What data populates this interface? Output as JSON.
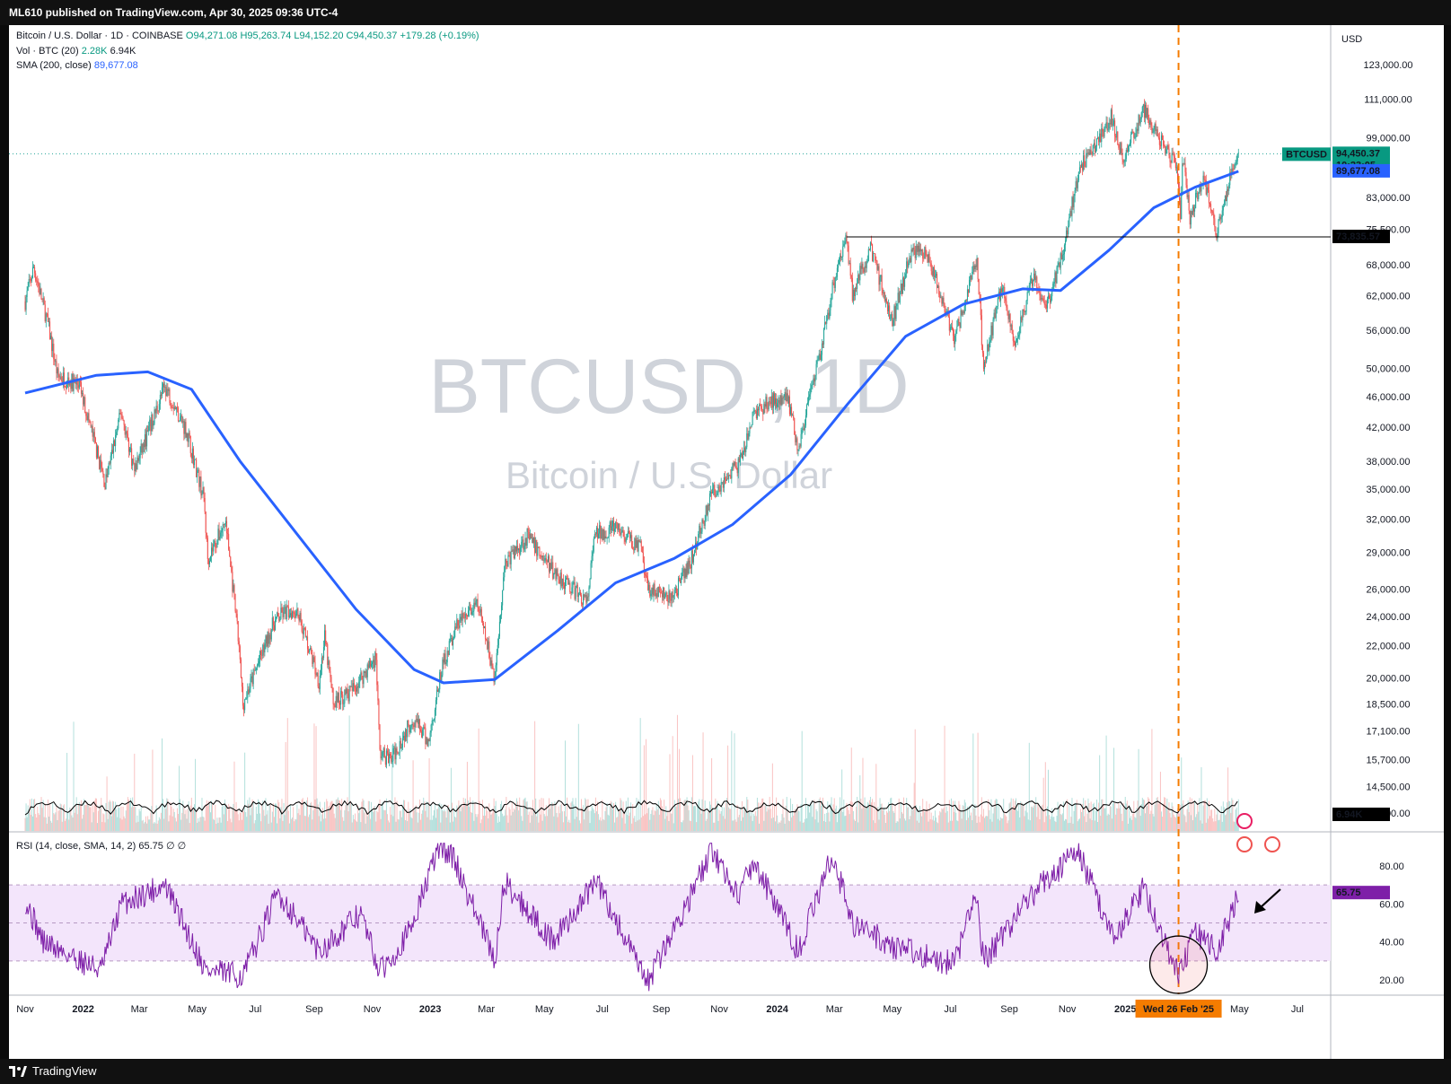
{
  "published_line": "ML610 published on TradingView.com, Apr 30, 2025 09:36 UTC-4",
  "footer_brand": "TradingView",
  "legend": {
    "symbol_line": "Bitcoin / U.S. Dollar · 1D · COINBASE",
    "o": "O94,271.08",
    "h": "H95,263.74",
    "l": "L94,152.20",
    "c": "C94,450.37",
    "chg": "+179.28 (+0.19%)",
    "vol_title": "Vol · BTC (20)",
    "vol_val1": "2.28K",
    "vol_val2": "6.94K",
    "sma_title": "SMA (200, close)",
    "sma_val": "89,677.08",
    "rsi_title": "RSI (14, close, SMA, 14, 2)",
    "rsi_val": "65.75",
    "rsi_extra": "∅ ∅"
  },
  "watermark": {
    "line1": "BTCUSD , 1D",
    "line2": "Bitcoin / U.S. Dollar"
  },
  "axis_currency": "USD",
  "badges": {
    "price": "94,450.37",
    "countdown": "10:23:05",
    "symbol": "BTCUSD",
    "sma": "89,677.08",
    "level": "73,835.57",
    "volume": "6.94K",
    "rsi": "65.75",
    "crosshair_date": "Wed 26 Feb '25"
  },
  "colors": {
    "up": "#26a69a",
    "down": "#ef5350",
    "sma": "#2962ff",
    "rsi": "#7e1fa8",
    "rsi_band": "#f3e5fb",
    "crosshair": "#f57c00",
    "badge_green": "#089981"
  },
  "chart_data": [
    {
      "type": "candlestick",
      "title": "Bitcoin / U.S. Dollar · 1D · COINBASE",
      "price_axis_scale": "log",
      "y_ticks": [
        123000,
        111000,
        99000,
        83000,
        75500,
        68000,
        62000,
        56000,
        50000,
        46000,
        42000,
        38000,
        35000,
        32000,
        29000,
        26000,
        24000,
        22000,
        20000,
        18500,
        17100,
        15700,
        14500,
        13400
      ],
      "x_ticks": [
        "Nov",
        "2022",
        "Mar",
        "May",
        "Jul",
        "Sep",
        "Nov",
        "2023",
        "Mar",
        "May",
        "Jul",
        "Sep",
        "Nov",
        "2024",
        "Mar",
        "May",
        "Jul",
        "Sep",
        "Nov",
        "2025",
        "Mar",
        "May",
        "Jul"
      ],
      "price_path": [
        [
          "2021-11-01",
          61000
        ],
        [
          "2021-11-10",
          67500
        ],
        [
          "2021-11-25",
          57000
        ],
        [
          "2021-12-05",
          49000
        ],
        [
          "2021-12-28",
          47500
        ],
        [
          "2022-01-10",
          41500
        ],
        [
          "2022-01-24",
          35500
        ],
        [
          "2022-02-10",
          44000
        ],
        [
          "2022-02-24",
          37000
        ],
        [
          "2022-03-28",
          47500
        ],
        [
          "2022-04-20",
          41500
        ],
        [
          "2022-05-08",
          34000
        ],
        [
          "2022-05-12",
          28500
        ],
        [
          "2022-05-31",
          31800
        ],
        [
          "2022-06-13",
          22500
        ],
        [
          "2022-06-18",
          18500
        ],
        [
          "2022-07-20",
          23500
        ],
        [
          "2022-07-30",
          24200
        ],
        [
          "2022-08-14",
          24500
        ],
        [
          "2022-09-06",
          19800
        ],
        [
          "2022-09-12",
          22500
        ],
        [
          "2022-09-21",
          18600
        ],
        [
          "2022-10-10",
          19200
        ],
        [
          "2022-11-05",
          21300
        ],
        [
          "2022-11-09",
          16000
        ],
        [
          "2022-11-21",
          15700
        ],
        [
          "2022-12-14",
          17800
        ],
        [
          "2022-12-30",
          16500
        ],
        [
          "2023-01-14",
          20800
        ],
        [
          "2023-01-30",
          23500
        ],
        [
          "2023-02-20",
          24800
        ],
        [
          "2023-03-10",
          20000
        ],
        [
          "2023-03-20",
          28000
        ],
        [
          "2023-04-13",
          30400
        ],
        [
          "2023-05-10",
          27500
        ],
        [
          "2023-06-15",
          25000
        ],
        [
          "2023-06-23",
          30500
        ],
        [
          "2023-07-13",
          31200
        ],
        [
          "2023-08-10",
          29400
        ],
        [
          "2023-08-17",
          26200
        ],
        [
          "2023-09-11",
          25200
        ],
        [
          "2023-10-01",
          28000
        ],
        [
          "2023-10-24",
          34500
        ],
        [
          "2023-11-24",
          38000
        ],
        [
          "2023-12-08",
          44000
        ],
        [
          "2024-01-11",
          46500
        ],
        [
          "2024-01-23",
          39500
        ],
        [
          "2024-02-15",
          52000
        ],
        [
          "2024-03-04",
          68000
        ],
        [
          "2024-03-14",
          73800
        ],
        [
          "2024-03-20",
          62500
        ],
        [
          "2024-04-08",
          71500
        ],
        [
          "2024-05-01",
          57500
        ],
        [
          "2024-05-21",
          71000
        ],
        [
          "2024-06-07",
          70000
        ],
        [
          "2024-07-05",
          54500
        ],
        [
          "2024-07-29",
          69000
        ],
        [
          "2024-08-05",
          50000
        ],
        [
          "2024-08-24",
          64000
        ],
        [
          "2024-09-06",
          53500
        ],
        [
          "2024-09-27",
          66000
        ],
        [
          "2024-10-10",
          59500
        ],
        [
          "2024-10-29",
          72500
        ],
        [
          "2024-11-13",
          90000
        ],
        [
          "2024-12-05",
          99000
        ],
        [
          "2024-12-17",
          106000
        ],
        [
          "2024-12-30",
          92500
        ],
        [
          "2025-01-20",
          108000
        ],
        [
          "2025-01-31",
          102000
        ],
        [
          "2025-02-24",
          91500
        ],
        [
          "2025-02-28",
          79500
        ],
        [
          "2025-03-02",
          94000
        ],
        [
          "2025-03-10",
          78500
        ],
        [
          "2025-03-25",
          88000
        ],
        [
          "2025-04-07",
          75000
        ],
        [
          "2025-04-21",
          87500
        ],
        [
          "2025-04-30",
          94450
        ]
      ],
      "sma_200": [
        [
          "2021-11-01",
          46500
        ],
        [
          "2022-01-15",
          49000
        ],
        [
          "2022-03-10",
          49500
        ],
        [
          "2022-04-25",
          47000
        ],
        [
          "2022-06-15",
          38000
        ],
        [
          "2022-08-15",
          30500
        ],
        [
          "2022-10-15",
          24500
        ],
        [
          "2022-12-15",
          20500
        ],
        [
          "2023-01-15",
          19700
        ],
        [
          "2023-03-10",
          19900
        ],
        [
          "2023-05-15",
          23000
        ],
        [
          "2023-07-15",
          26500
        ],
        [
          "2023-09-15",
          28500
        ],
        [
          "2023-11-15",
          31500
        ],
        [
          "2024-01-15",
          36500
        ],
        [
          "2024-03-15",
          45000
        ],
        [
          "2024-05-15",
          55000
        ],
        [
          "2024-07-15",
          60500
        ],
        [
          "2024-09-15",
          63300
        ],
        [
          "2024-10-25",
          63000
        ],
        [
          "2024-12-15",
          71000
        ],
        [
          "2025-01-31",
          80500
        ],
        [
          "2025-03-15",
          85500
        ],
        [
          "2025-04-30",
          89677
        ]
      ],
      "horizontal_level": {
        "value": 73835.57,
        "from": "2024-03-14"
      },
      "crosshair_date": "2025-02-26"
    },
    {
      "type": "histogram",
      "title": "Vol · BTC (20)",
      "series": [
        {
          "name": "Vol · BTC (20)",
          "last_value": "6.94K"
        }
      ]
    },
    {
      "type": "line",
      "title": "RSI (14, close, SMA, 14, 2)",
      "y_ticks": [
        80,
        60,
        40,
        20
      ],
      "bands": {
        "upper": 70,
        "middle": 50,
        "lower": 30
      },
      "last_value": 65.75,
      "rsi_path": [
        [
          "2021-11-01",
          62
        ],
        [
          "2021-11-20",
          40
        ],
        [
          "2021-12-10",
          35
        ],
        [
          "2022-01-20",
          25
        ],
        [
          "2022-02-10",
          60
        ],
        [
          "2022-03-28",
          70
        ],
        [
          "2022-05-10",
          25
        ],
        [
          "2022-06-18",
          22
        ],
        [
          "2022-07-25",
          66
        ],
        [
          "2022-09-06",
          35
        ],
        [
          "2022-10-20",
          55
        ],
        [
          "2022-11-09",
          24
        ],
        [
          "2022-12-10",
          45
        ],
        [
          "2023-01-10",
          90
        ],
        [
          "2023-01-25",
          85
        ],
        [
          "2023-03-10",
          30
        ],
        [
          "2023-03-20",
          72
        ],
        [
          "2023-05-10",
          40
        ],
        [
          "2023-06-25",
          72
        ],
        [
          "2023-08-17",
          18
        ],
        [
          "2023-10-25",
          88
        ],
        [
          "2023-11-20",
          65
        ],
        [
          "2023-12-08",
          82
        ],
        [
          "2024-01-23",
          35
        ],
        [
          "2024-02-28",
          86
        ],
        [
          "2024-03-20",
          50
        ],
        [
          "2024-05-01",
          38
        ],
        [
          "2024-07-05",
          28
        ],
        [
          "2024-07-28",
          65
        ],
        [
          "2024-08-05",
          30
        ],
        [
          "2024-09-27",
          66
        ],
        [
          "2024-11-12",
          88
        ],
        [
          "2024-12-20",
          42
        ],
        [
          "2025-01-20",
          68
        ],
        [
          "2025-02-26",
          22
        ],
        [
          "2025-03-15",
          45
        ],
        [
          "2025-04-07",
          35
        ],
        [
          "2025-04-30",
          65.75
        ]
      ],
      "annotations": [
        "circle around RSI low near crosshair",
        "arrow pointing at latest RSI"
      ]
    }
  ]
}
